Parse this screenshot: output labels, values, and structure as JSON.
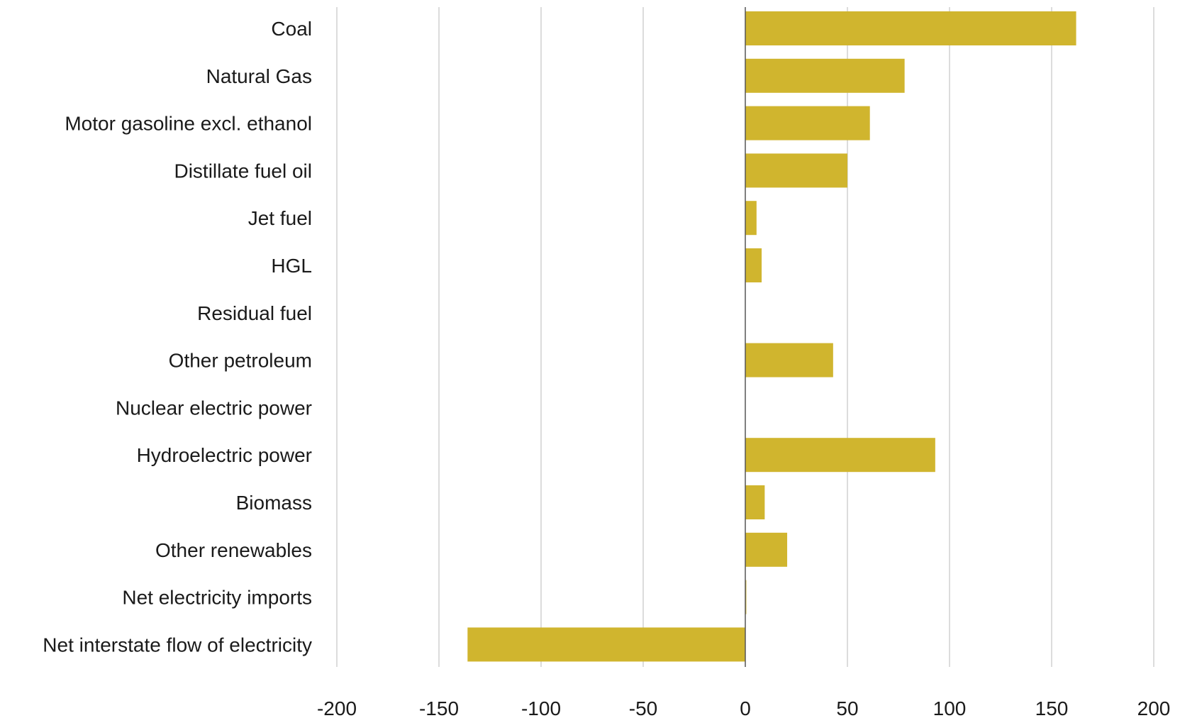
{
  "chart_data": {
    "type": "bar",
    "orientation": "horizontal",
    "categories": [
      "Coal",
      "Natural Gas",
      "Motor gasoline excl. ethanol",
      "Distillate fuel oil",
      "Jet fuel",
      "HGL",
      "Residual fuel",
      "Other petroleum",
      "Nuclear electric power",
      "Hydroelectric power",
      "Biomass",
      "Other renewables",
      "Net electricity imports",
      "Net interstate flow of electricity"
    ],
    "values": [
      162,
      78,
      61,
      50,
      5.5,
      8,
      0,
      43,
      0,
      93,
      9.5,
      20.5,
      0.5,
      -136
    ],
    "xlim": [
      -200,
      200
    ],
    "xticks": [
      -200,
      -150,
      -100,
      -50,
      0,
      50,
      100,
      150,
      200
    ],
    "xtick_labels": [
      "-200",
      "-150",
      "-100",
      "-50",
      "0",
      "50",
      "100",
      "150",
      "200"
    ],
    "grid": "vertical",
    "bar_color": "#d0b52e",
    "title": "",
    "xlabel": "",
    "ylabel": ""
  }
}
